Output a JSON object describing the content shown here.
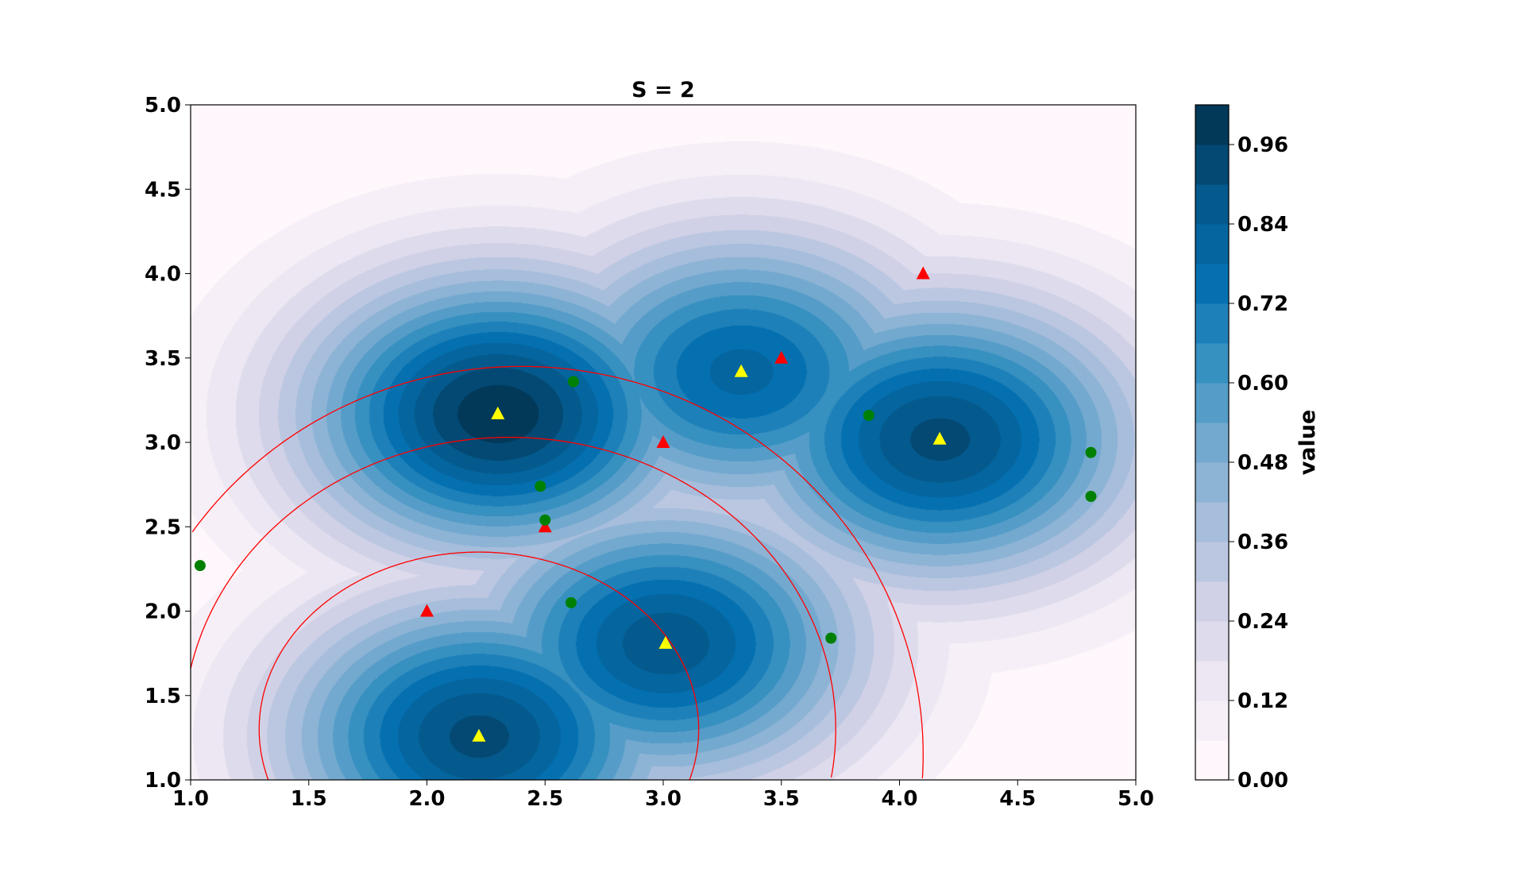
{
  "chart_data": {
    "type": "contour",
    "title": "S = 2",
    "xlim": [
      1.0,
      5.0
    ],
    "ylim": [
      1.0,
      5.0
    ],
    "xticks": [
      "1.0",
      "1.5",
      "2.0",
      "2.5",
      "3.0",
      "3.5",
      "4.0",
      "4.5",
      "5.0"
    ],
    "yticks": [
      "1.0",
      "1.5",
      "2.0",
      "2.5",
      "3.0",
      "3.5",
      "4.0",
      "4.5",
      "5.0"
    ],
    "grid": false,
    "colormap": "PuBu",
    "colormap_stops": [
      "#fff7fb",
      "#ece7f2",
      "#d0d1e6",
      "#a6bddb",
      "#74a9cf",
      "#3690c0",
      "#0570b0",
      "#045a8d",
      "#023858"
    ],
    "contour_levels": {
      "min": 0.0,
      "max": 1.02,
      "step": 0.06
    },
    "contour_peaks": [
      {
        "x": 2.3,
        "y": 3.17,
        "value": 1.0
      },
      {
        "x": 3.33,
        "y": 3.42,
        "value": 0.8
      },
      {
        "x": 4.17,
        "y": 3.02,
        "value": 0.92
      },
      {
        "x": 3.01,
        "y": 1.81,
        "value": 0.88
      },
      {
        "x": 2.22,
        "y": 1.26,
        "value": 0.92
      }
    ],
    "contour_sigma": 0.6,
    "colorbar": {
      "label": "value",
      "ticks": [
        "0.00",
        "0.12",
        "0.24",
        "0.36",
        "0.48",
        "0.60",
        "0.72",
        "0.84",
        "0.96"
      ],
      "range": [
        0.0,
        1.02
      ]
    },
    "series": [
      {
        "marker": "triangle",
        "color": "#ffff00",
        "points": [
          [
            2.3,
            3.17
          ],
          [
            3.33,
            3.42
          ],
          [
            4.17,
            3.02
          ],
          [
            3.01,
            1.81
          ],
          [
            2.22,
            1.26
          ]
        ]
      },
      {
        "marker": "triangle",
        "color": "#ff0000",
        "points": [
          [
            4.1,
            4.0
          ],
          [
            3.5,
            3.5
          ],
          [
            3.0,
            3.0
          ],
          [
            2.5,
            2.5
          ],
          [
            2.0,
            2.0
          ]
        ]
      },
      {
        "marker": "circle",
        "color": "#008000",
        "points": [
          [
            2.62,
            3.36
          ],
          [
            3.87,
            3.16
          ],
          [
            4.81,
            2.94
          ],
          [
            4.81,
            2.68
          ],
          [
            2.48,
            2.74
          ],
          [
            2.5,
            2.54
          ],
          [
            1.04,
            2.27
          ],
          [
            2.61,
            2.05
          ],
          [
            3.71,
            1.84
          ]
        ]
      }
    ],
    "curves": [
      {
        "color": "#ff0000",
        "shape": "ellipse",
        "cx": 2.4,
        "cy": 1.15,
        "rx": 1.7,
        "ry": 2.3
      },
      {
        "color": "#ff0000",
        "shape": "ellipse",
        "cx": 2.35,
        "cy": 1.3,
        "rx": 1.38,
        "ry": 1.73
      },
      {
        "color": "#ff0000",
        "shape": "ellipse",
        "cx": 2.22,
        "cy": 1.3,
        "rx": 0.93,
        "ry": 1.05
      }
    ]
  }
}
